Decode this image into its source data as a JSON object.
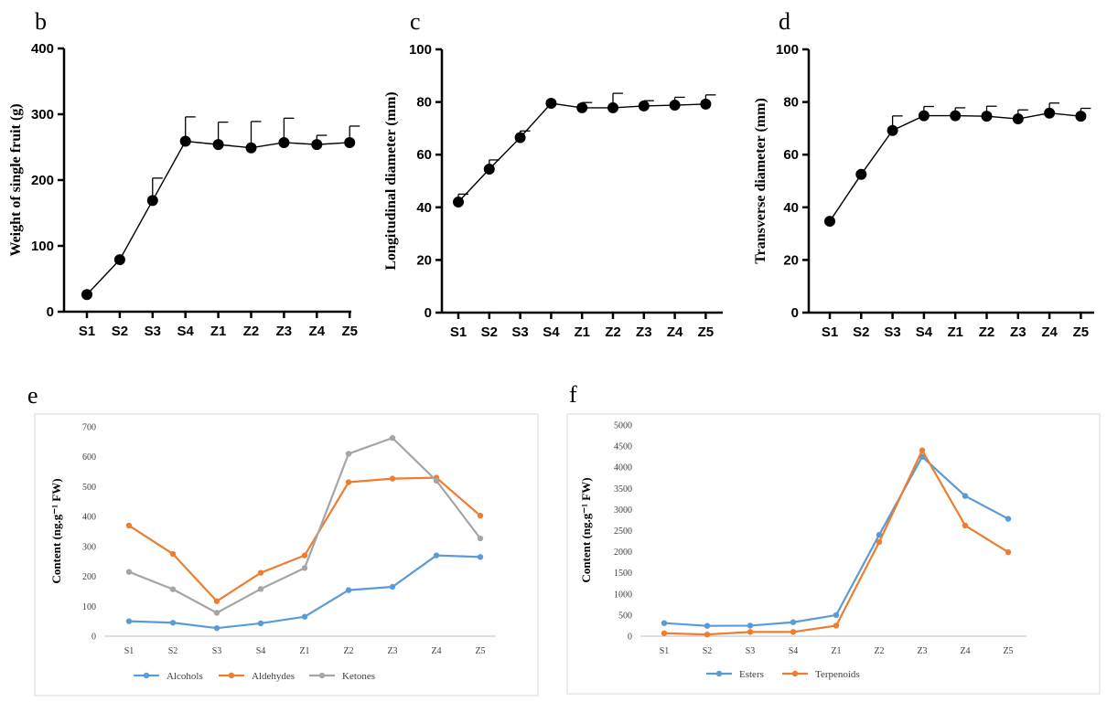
{
  "categories": [
    "S1",
    "S2",
    "S3",
    "S4",
    "Z1",
    "Z2",
    "Z3",
    "Z4",
    "Z5"
  ],
  "colors": {
    "alcohols": "#5b9bd5",
    "aldehydes": "#ed7d31",
    "ketones": "#a5a5a5",
    "esters": "#5b9bd5",
    "terpenoids": "#ed7d31",
    "axis": "#000000"
  },
  "chart_data": [
    {
      "panel": "b",
      "type": "line",
      "ylabel": "Weight of single fruit (g)",
      "ylim": [
        0,
        400
      ],
      "yticks": [
        "0",
        "100",
        "200",
        "300",
        "400"
      ],
      "categories": [
        "S1",
        "S2",
        "S3",
        "S4",
        "Z1",
        "Z2",
        "Z3",
        "Z4",
        "Z5"
      ],
      "series": [
        {
          "name": "Weight",
          "values": [
            26,
            79,
            169,
            259,
            254,
            249,
            257,
            254,
            257
          ],
          "errors": [
            0,
            0,
            34,
            37,
            34,
            40,
            37,
            14,
            25
          ]
        }
      ]
    },
    {
      "panel": "c",
      "type": "line",
      "ylabel": "Longitudinal diameter (mm)",
      "ylim": [
        0,
        100
      ],
      "yticks": [
        "0",
        "20",
        "40",
        "60",
        "80",
        "100"
      ],
      "categories": [
        "S1",
        "S2",
        "S3",
        "S4",
        "Z1",
        "Z2",
        "Z3",
        "Z4",
        "Z5"
      ],
      "series": [
        {
          "name": "Longitudinal diameter",
          "values": [
            42,
            54.5,
            66.5,
            79.5,
            77.8,
            77.8,
            78.5,
            78.8,
            79.2
          ],
          "errors": [
            3,
            3.5,
            2.5,
            0,
            2,
            5.5,
            2,
            3,
            3.5
          ]
        }
      ]
    },
    {
      "panel": "d",
      "type": "line",
      "ylabel": "Transverse diameter (mm)",
      "ylim": [
        0,
        100
      ],
      "yticks": [
        "0",
        "20",
        "40",
        "60",
        "80",
        "100"
      ],
      "categories": [
        "S1",
        "S2",
        "S3",
        "S4",
        "Z1",
        "Z2",
        "Z3",
        "Z4",
        "Z5"
      ],
      "series": [
        {
          "name": "Transverse diameter",
          "values": [
            34.7,
            52.5,
            69.2,
            74.8,
            74.8,
            74.6,
            73.6,
            75.8,
            74.6
          ],
          "errors": [
            0,
            0,
            5.5,
            3.5,
            3,
            3.8,
            3.4,
            3.8,
            3
          ]
        }
      ]
    },
    {
      "panel": "e",
      "type": "line",
      "ylabel": "Content (ng.g⁻¹ FW)",
      "ylim": [
        0,
        700
      ],
      "yticks": [
        "0",
        "100",
        "200",
        "300",
        "400",
        "500",
        "600",
        "700"
      ],
      "categories": [
        "S1",
        "S2",
        "S3",
        "S4",
        "Z1",
        "Z2",
        "Z3",
        "Z4",
        "Z5"
      ],
      "series": [
        {
          "name": "Alcohols",
          "values": [
            50,
            45,
            27,
            43,
            65,
            154,
            165,
            270,
            265
          ]
        },
        {
          "name": "Aldehydes",
          "values": [
            370,
            275,
            117,
            212,
            270,
            515,
            527,
            530,
            403
          ]
        },
        {
          "name": "Ketones",
          "values": [
            215,
            157,
            78,
            158,
            228,
            610,
            663,
            520,
            327
          ]
        }
      ]
    },
    {
      "panel": "f",
      "type": "line",
      "ylabel": "Content (ng.g⁻¹ FW)",
      "ylim": [
        0,
        5000
      ],
      "yticks": [
        "0",
        "500",
        "1000",
        "1500",
        "2000",
        "2500",
        "3000",
        "3500",
        "4000",
        "4500",
        "5000"
      ],
      "categories": [
        "S1",
        "S2",
        "S3",
        "S4",
        "Z1",
        "Z2",
        "Z3",
        "Z4",
        "Z5"
      ],
      "series": [
        {
          "name": "Esters",
          "values": [
            310,
            245,
            250,
            330,
            500,
            2400,
            4250,
            3320,
            2780
          ]
        },
        {
          "name": "Terpenoids",
          "values": [
            70,
            40,
            100,
            100,
            250,
            2230,
            4400,
            2620,
            1990
          ]
        }
      ]
    }
  ]
}
